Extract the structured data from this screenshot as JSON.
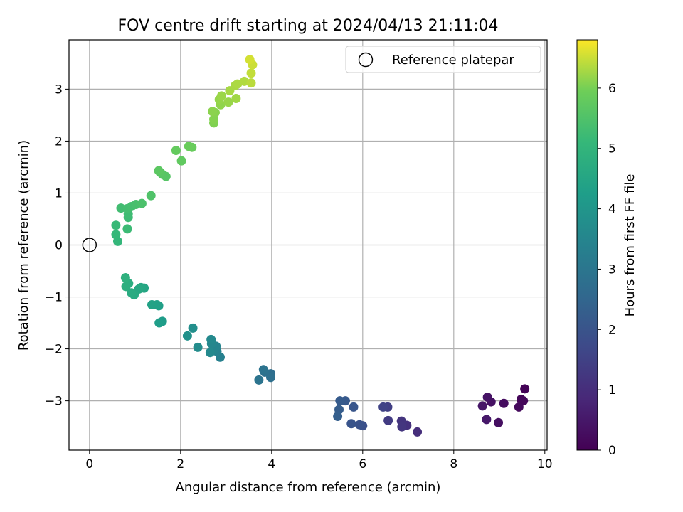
{
  "chart_data": {
    "type": "scatter",
    "title": "FOV centre drift starting at 2024/04/13 21:11:04",
    "xlabel": "Angular distance from reference (arcmin)",
    "ylabel": "Rotation from reference (arcmin)",
    "xlim": [
      -0.45,
      10.05
    ],
    "ylim": [
      -3.95,
      3.95
    ],
    "xticks": [
      0,
      2,
      4,
      6,
      8,
      10
    ],
    "yticks": [
      -3,
      -2,
      -1,
      0,
      1,
      2,
      3
    ],
    "grid": true,
    "legend": {
      "position": "top-right",
      "entries": [
        "Reference platepar"
      ]
    },
    "reference_point": {
      "label": "Reference platepar",
      "x": 0,
      "y": 0
    },
    "colorbar": {
      "label": "Hours from first FF file",
      "range": [
        0,
        6.8
      ],
      "ticks": [
        0,
        1,
        2,
        3,
        4,
        5,
        6
      ],
      "colormap": "viridis"
    },
    "series": [
      {
        "points": [
          {
            "x": 9.56,
            "y": -2.77,
            "c": 0.05
          },
          {
            "x": 9.48,
            "y": -2.97,
            "c": 0.1
          },
          {
            "x": 9.53,
            "y": -3.0,
            "c": 0.15
          },
          {
            "x": 9.43,
            "y": -3.12,
            "c": 0.2
          },
          {
            "x": 9.1,
            "y": -3.05,
            "c": 0.25
          },
          {
            "x": 8.98,
            "y": -3.42,
            "c": 0.3
          },
          {
            "x": 8.82,
            "y": -3.02,
            "c": 0.35
          },
          {
            "x": 8.74,
            "y": -2.93,
            "c": 0.4
          },
          {
            "x": 8.63,
            "y": -3.1,
            "c": 0.45
          },
          {
            "x": 8.72,
            "y": -3.36,
            "c": 0.5
          },
          {
            "x": 7.2,
            "y": -3.6,
            "c": 1.0
          },
          {
            "x": 6.97,
            "y": -3.47,
            "c": 1.08
          },
          {
            "x": 6.85,
            "y": -3.39,
            "c": 1.15
          },
          {
            "x": 6.86,
            "y": -3.5,
            "c": 1.22
          },
          {
            "x": 6.56,
            "y": -3.38,
            "c": 1.35
          },
          {
            "x": 6.55,
            "y": -3.12,
            "c": 1.45
          },
          {
            "x": 6.45,
            "y": -3.12,
            "c": 1.55
          },
          {
            "x": 6.0,
            "y": -3.48,
            "c": 1.9
          },
          {
            "x": 5.93,
            "y": -3.46,
            "c": 1.95
          },
          {
            "x": 5.75,
            "y": -3.44,
            "c": 2.0
          },
          {
            "x": 5.8,
            "y": -3.12,
            "c": 2.05
          },
          {
            "x": 5.62,
            "y": -3.0,
            "c": 2.15
          },
          {
            "x": 5.5,
            "y": -3.0,
            "c": 2.2
          },
          {
            "x": 5.48,
            "y": -3.17,
            "c": 2.25
          },
          {
            "x": 5.45,
            "y": -3.3,
            "c": 2.3
          },
          {
            "x": 3.98,
            "y": -2.48,
            "c": 2.75
          },
          {
            "x": 3.98,
            "y": -2.55,
            "c": 2.8
          },
          {
            "x": 3.85,
            "y": -2.45,
            "c": 2.85
          },
          {
            "x": 3.82,
            "y": -2.4,
            "c": 2.9
          },
          {
            "x": 3.72,
            "y": -2.6,
            "c": 2.95
          },
          {
            "x": 2.87,
            "y": -2.16,
            "c": 3.35
          },
          {
            "x": 2.8,
            "y": -2.05,
            "c": 3.4
          },
          {
            "x": 2.78,
            "y": -1.95,
            "c": 3.45
          },
          {
            "x": 2.73,
            "y": -2.02,
            "c": 3.5
          },
          {
            "x": 2.68,
            "y": -1.9,
            "c": 3.55
          },
          {
            "x": 2.67,
            "y": -1.82,
            "c": 3.6
          },
          {
            "x": 2.65,
            "y": -2.07,
            "c": 3.62
          },
          {
            "x": 2.38,
            "y": -1.97,
            "c": 3.7
          },
          {
            "x": 2.27,
            "y": -1.6,
            "c": 3.78
          },
          {
            "x": 2.15,
            "y": -1.75,
            "c": 3.85
          },
          {
            "x": 1.6,
            "y": -1.47,
            "c": 4.2
          },
          {
            "x": 1.53,
            "y": -1.5,
            "c": 4.25
          },
          {
            "x": 1.52,
            "y": -1.17,
            "c": 4.3
          },
          {
            "x": 1.48,
            "y": -1.15,
            "c": 4.35
          },
          {
            "x": 1.37,
            "y": -1.15,
            "c": 4.4
          },
          {
            "x": 1.2,
            "y": -0.83,
            "c": 4.5
          },
          {
            "x": 1.13,
            "y": -0.82,
            "c": 4.55
          },
          {
            "x": 1.08,
            "y": -0.85,
            "c": 4.6
          },
          {
            "x": 0.98,
            "y": -0.96,
            "c": 4.65
          },
          {
            "x": 0.92,
            "y": -0.92,
            "c": 4.7
          },
          {
            "x": 0.86,
            "y": -0.74,
            "c": 4.75
          },
          {
            "x": 0.8,
            "y": -0.8,
            "c": 4.8
          },
          {
            "x": 0.79,
            "y": -0.63,
            "c": 4.85
          },
          {
            "x": 0.62,
            "y": 0.07,
            "c": 5.05
          },
          {
            "x": 0.58,
            "y": 0.2,
            "c": 5.1
          },
          {
            "x": 0.58,
            "y": 0.38,
            "c": 5.15
          },
          {
            "x": 0.83,
            "y": 0.31,
            "c": 5.2
          },
          {
            "x": 0.85,
            "y": 0.53,
            "c": 5.22
          },
          {
            "x": 0.85,
            "y": 0.6,
            "c": 5.25
          },
          {
            "x": 0.69,
            "y": 0.71,
            "c": 5.3
          },
          {
            "x": 0.83,
            "y": 0.7,
            "c": 5.33
          },
          {
            "x": 0.92,
            "y": 0.74,
            "c": 5.36
          },
          {
            "x": 1.02,
            "y": 0.78,
            "c": 5.4
          },
          {
            "x": 1.15,
            "y": 0.8,
            "c": 5.45
          },
          {
            "x": 1.35,
            "y": 0.95,
            "c": 5.5
          },
          {
            "x": 1.68,
            "y": 1.32,
            "c": 5.6
          },
          {
            "x": 1.6,
            "y": 1.36,
            "c": 5.62
          },
          {
            "x": 1.55,
            "y": 1.4,
            "c": 5.65
          },
          {
            "x": 1.52,
            "y": 1.43,
            "c": 5.68
          },
          {
            "x": 2.02,
            "y": 1.62,
            "c": 5.75
          },
          {
            "x": 1.9,
            "y": 1.82,
            "c": 5.8
          },
          {
            "x": 2.25,
            "y": 1.88,
            "c": 5.85
          },
          {
            "x": 2.18,
            "y": 1.9,
            "c": 5.88
          },
          {
            "x": 2.73,
            "y": 2.35,
            "c": 6.05
          },
          {
            "x": 2.73,
            "y": 2.42,
            "c": 6.08
          },
          {
            "x": 2.76,
            "y": 2.55,
            "c": 6.1
          },
          {
            "x": 2.7,
            "y": 2.57,
            "c": 6.12
          },
          {
            "x": 2.88,
            "y": 2.7,
            "c": 6.15
          },
          {
            "x": 2.85,
            "y": 2.8,
            "c": 6.18
          },
          {
            "x": 3.05,
            "y": 2.75,
            "c": 6.2
          },
          {
            "x": 2.9,
            "y": 2.87,
            "c": 6.22
          },
          {
            "x": 3.22,
            "y": 2.82,
            "c": 6.25
          },
          {
            "x": 3.08,
            "y": 2.97,
            "c": 6.28
          },
          {
            "x": 3.2,
            "y": 3.07,
            "c": 6.3
          },
          {
            "x": 3.25,
            "y": 3.1,
            "c": 6.32
          },
          {
            "x": 3.4,
            "y": 3.15,
            "c": 6.35
          },
          {
            "x": 3.55,
            "y": 3.12,
            "c": 6.4
          },
          {
            "x": 3.55,
            "y": 3.31,
            "c": 6.45
          },
          {
            "x": 3.58,
            "y": 3.47,
            "c": 6.5
          },
          {
            "x": 3.52,
            "y": 3.57,
            "c": 6.55
          }
        ]
      }
    ]
  }
}
